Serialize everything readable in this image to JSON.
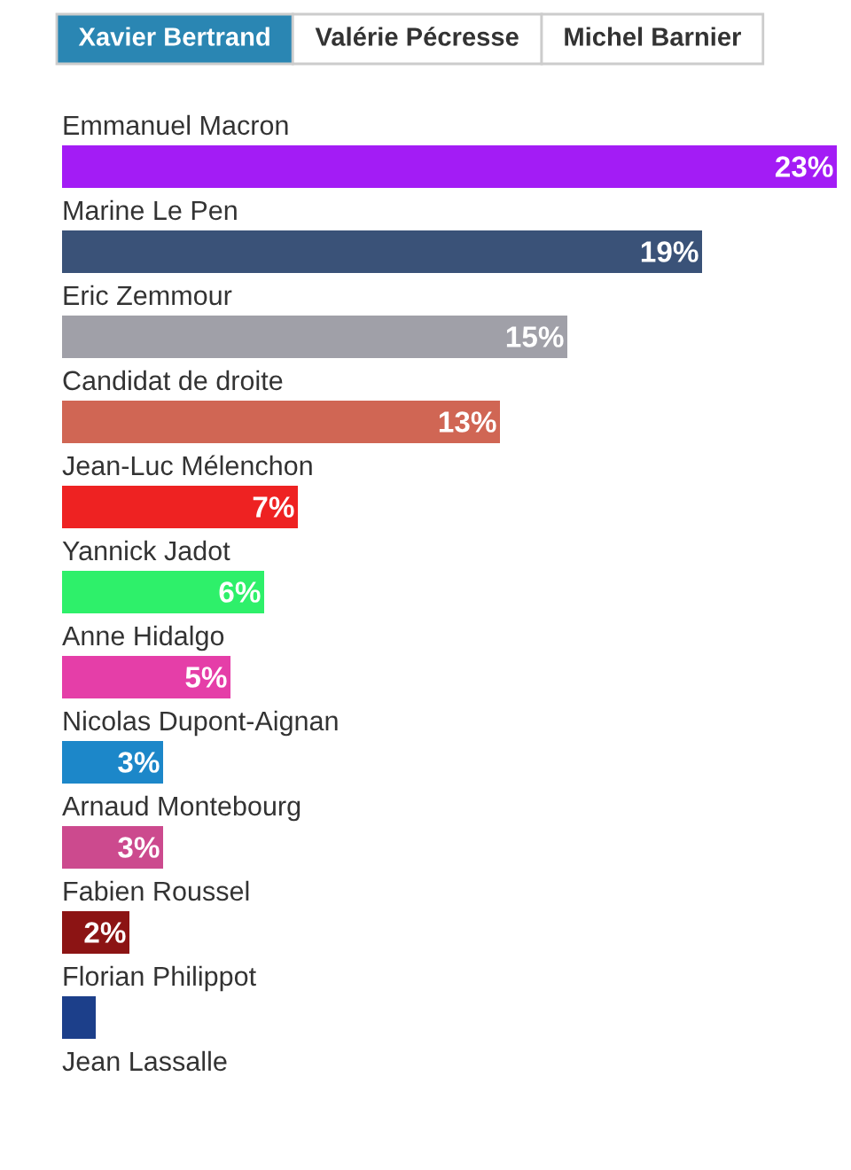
{
  "chart_data": {
    "type": "bar",
    "orientation": "horizontal",
    "annotations": [
      "Xavier Bertrand",
      "Valérie Pécresse",
      "Michel Barnier"
    ],
    "categories": [
      "Emmanuel Macron",
      "Marine Le Pen",
      "Eric Zemmour",
      "Candidat de droite",
      "Jean-Luc Mélenchon",
      "Yannick Jadot",
      "Anne Hidalgo",
      "Nicolas Dupont-Aignan",
      "Arnaud Montebourg",
      "Fabien Roussel",
      "Florian Philippot",
      "Jean Lassalle"
    ],
    "values": [
      23,
      19,
      15,
      13,
      7,
      6,
      5,
      3,
      3,
      2,
      1,
      null
    ],
    "colors": [
      "#a31cf5",
      "#3a5278",
      "#a0a0a8",
      "#d06654",
      "#ee2222",
      "#2ef06a",
      "#e53ea8",
      "#1c87c9",
      "#cc4a8e",
      "#8c1414",
      "#1c3f8a",
      null
    ],
    "value_labels": [
      "23%",
      "19%",
      "15%",
      "13%",
      "7%",
      "6%",
      "5%",
      "3%",
      "3%",
      "2%",
      null,
      null
    ]
  }
}
